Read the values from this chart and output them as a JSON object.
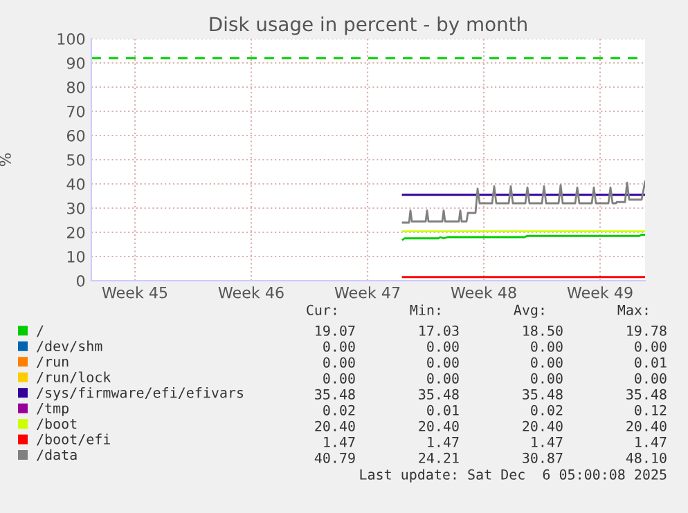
{
  "chart_data": {
    "type": "line",
    "title": "Disk usage in percent - by month",
    "ylabel": "%",
    "xlim": [
      "2025-11-02T21:00",
      "2025-12-06T05:00"
    ],
    "xticks": [
      {
        "value": "2025-11-05T12:00",
        "label": "Week 45"
      },
      {
        "value": "2025-11-12T12:00",
        "label": "Week 46"
      },
      {
        "value": "2025-11-19T12:00",
        "label": "Week 47"
      },
      {
        "value": "2025-11-26T12:00",
        "label": "Week 48"
      },
      {
        "value": "2025-12-03T12:00",
        "label": "Week 49"
      }
    ],
    "ylim": [
      0,
      100
    ],
    "yticks": [
      0,
      10,
      20,
      30,
      40,
      50,
      60,
      70,
      80,
      90,
      100
    ],
    "grid": true,
    "legend": "bottom",
    "series": [
      {
        "name": "/",
        "color": "#00cc00",
        "x": [
          "2025-11-21T15:00",
          "2025-11-21T17:24",
          "2025-11-23T18:36",
          "2025-11-23T21:00",
          "2025-11-24T01:48",
          "2025-11-24T07:48",
          "2025-11-28T23:24",
          "2025-11-29T01:48",
          "2025-12-05T21:00",
          "2025-12-05T23:24",
          "2025-12-06T05:00"
        ],
        "values": [
          17,
          17.5,
          17.5,
          18,
          17.5,
          18,
          18,
          18.5,
          18.5,
          19,
          19
        ]
      },
      {
        "name": "/dev/shm",
        "color": "#0066b3"
      },
      {
        "name": "/run",
        "color": "#ff8000"
      },
      {
        "name": "/run/lock",
        "color": "#ffcc00"
      },
      {
        "name": "/sys/firmware/efi/efivars",
        "color": "#330099",
        "x": [
          "2025-11-21T15:00",
          "2025-12-06T05:00"
        ],
        "values": [
          35.5,
          35.5
        ]
      },
      {
        "name": "/tmp",
        "color": "#990099"
      },
      {
        "name": "/boot",
        "color": "#ccff00",
        "x": [
          "2025-11-21T15:00",
          "2025-12-06T05:00"
        ],
        "values": [
          20.4,
          20.4
        ]
      },
      {
        "name": "/boot/efi",
        "color": "#ff0000",
        "x": [
          "2025-11-21T15:00",
          "2025-12-06T05:00"
        ],
        "values": [
          1.5,
          1.5
        ]
      },
      {
        "name": "/data",
        "color": "#808080",
        "x": [
          "2025-11-21T15:00",
          "2025-11-22T00:00",
          "2025-11-22T02:00",
          "2025-11-22T04:00",
          "2025-11-23T00:00",
          "2025-11-23T02:00",
          "2025-11-23T04:00",
          "2025-11-24T00:00",
          "2025-11-24T02:00",
          "2025-11-24T04:00",
          "2025-11-25T00:00",
          "2025-11-25T02:00",
          "2025-11-25T04:00",
          "2025-11-25T11:00",
          "2025-11-25T13:00",
          "2025-11-26T00:00",
          "2025-11-26T03:00",
          "2025-11-26T06:00",
          "2025-11-27T00:00",
          "2025-11-27T03:00",
          "2025-11-27T06:00",
          "2025-11-28T00:00",
          "2025-11-28T03:00",
          "2025-11-28T06:00",
          "2025-11-29T00:00",
          "2025-11-29T03:00",
          "2025-11-29T06:00",
          "2025-11-30T00:00",
          "2025-11-30T03:00",
          "2025-11-30T06:00",
          "2025-12-01T00:00",
          "2025-12-01T03:00",
          "2025-12-01T06:00",
          "2025-12-02T00:00",
          "2025-12-02T03:00",
          "2025-12-02T06:00",
          "2025-12-03T00:00",
          "2025-12-03T03:00",
          "2025-12-03T06:00",
          "2025-12-04T00:00",
          "2025-12-04T03:00",
          "2025-12-04T06:00",
          "2025-12-04T11:00",
          "2025-12-04T12:00",
          "2025-12-05T00:00",
          "2025-12-05T03:00",
          "2025-12-05T06:00",
          "2025-12-06T00:00",
          "2025-12-06T05:00"
        ],
        "values": [
          24,
          24,
          29,
          24.5,
          24.5,
          29,
          24.5,
          24.5,
          29,
          24.5,
          24.5,
          29,
          24.5,
          24.5,
          28,
          28,
          38,
          32,
          32,
          39,
          32,
          32,
          39,
          32,
          32,
          38.5,
          32,
          32,
          39,
          32,
          32,
          39.5,
          32,
          32,
          38.5,
          32,
          32,
          38.5,
          32,
          32,
          38.5,
          32,
          32,
          32.5,
          32.5,
          40.5,
          33.5,
          33.5,
          41
        ]
      }
    ],
    "ref_lines": [
      {
        "axis": "y",
        "value": 92,
        "color": "#00cc00",
        "line_style": "dashed"
      }
    ],
    "annotations": [
      "Cur:",
      "Min:",
      "Avg:",
      "Max:",
      "19.07",
      "17.03",
      "18.50",
      "19.78",
      "0.00",
      "0.00",
      "0.00",
      "0.00",
      "0.00",
      "0.00",
      "0.00",
      "0.01",
      "0.00",
      "0.00",
      "0.00",
      "0.00",
      "35.48",
      "35.48",
      "35.48",
      "35.48",
      "0.02",
      "0.01",
      "0.02",
      "0.12",
      "20.40",
      "20.40",
      "20.40",
      "20.40",
      "1.47",
      "1.47",
      "1.47",
      "1.47",
      "40.79",
      "24.21",
      "30.87",
      "48.10",
      "Last update: Sat Dec  6 05:00:08 2025"
    ]
  }
}
